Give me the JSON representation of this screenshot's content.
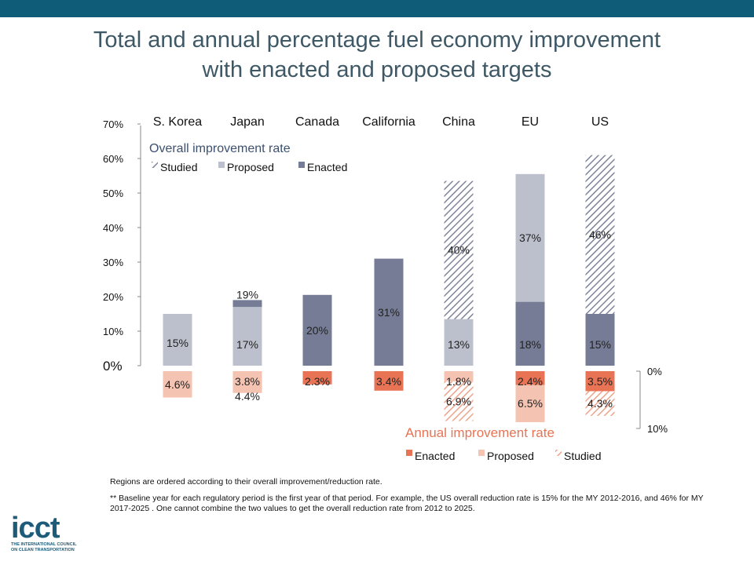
{
  "title_line1": "Total and annual percentage fuel economy improvement",
  "title_line2": "with enacted and proposed targets",
  "footnote_1": "Regions are ordered according to their overall improvement/reduction rate.",
  "footnote_2": "** Baseline year for each regulatory period is the first year of that period. For example, the US overall  reduction rate is 15% for the MY 2012-2016, and 46% for MY 2017-2025 . One cannot combine the two values to get the overall reduction rate from 2012 to 2025.",
  "logo": {
    "word": "icct",
    "sub_line1": "THE INTERNATIONAL COUNCIL",
    "sub_line2": "ON CLEAN TRANSPORTATION"
  },
  "colors": {
    "topbar": "#0e5c78",
    "studied_hatch": "#7e8499",
    "proposed": "#bcc0cc",
    "enacted": "#767c95",
    "annual_enacted": "#e87355",
    "annual_proposed": "#f5c3b2",
    "annual_studied_hatch": "#eea48c",
    "annual_title": "#e87355",
    "overall_title": "#3c5170"
  },
  "chart_data": {
    "type": "bar",
    "categories": [
      "S. Korea",
      "Japan",
      "Canada",
      "California",
      "China",
      "EU",
      "US"
    ],
    "overall": {
      "title": "Overall improvement rate",
      "legend": [
        "Studied",
        "Proposed",
        "Enacted"
      ],
      "axis_ticks": [
        "0%",
        "10%",
        "20%",
        "30%",
        "40%",
        "50%",
        "60%",
        "70%"
      ],
      "ylim": [
        0,
        70
      ],
      "bars": [
        {
          "category": "S. Korea",
          "segments": [
            {
              "kind": "Proposed",
              "value": 15,
              "label": "15%"
            }
          ]
        },
        {
          "category": "Japan",
          "segments": [
            {
              "kind": "Proposed",
              "value": 17,
              "label": "17%"
            },
            {
              "kind": "Enacted",
              "value": 2,
              "label": "19%"
            }
          ]
        },
        {
          "category": "Canada",
          "segments": [
            {
              "kind": "Enacted",
              "value": 20.5,
              "label": "20%"
            }
          ]
        },
        {
          "category": "California",
          "segments": [
            {
              "kind": "Enacted",
              "value": 31,
              "label": "31%"
            }
          ]
        },
        {
          "category": "China",
          "segments": [
            {
              "kind": "Proposed",
              "value": 13.5,
              "label": "13%"
            },
            {
              "kind": "Studied",
              "value": 40,
              "label": "40%"
            }
          ]
        },
        {
          "category": "EU",
          "segments": [
            {
              "kind": "Enacted",
              "value": 18.5,
              "label": "18%"
            },
            {
              "kind": "Proposed",
              "value": 37,
              "label": "37%"
            }
          ]
        },
        {
          "category": "US",
          "segments": [
            {
              "kind": "Enacted",
              "value": 15,
              "label": "15%"
            },
            {
              "kind": "Studied",
              "value": 46,
              "label": "46%"
            }
          ]
        }
      ]
    },
    "annual": {
      "title": "Annual improvement rate",
      "legend": [
        "Enacted",
        "Proposed",
        "Studied"
      ],
      "axis_ticks": [
        "0%",
        "10%"
      ],
      "ylim": [
        0,
        10
      ],
      "bars": [
        {
          "category": "S. Korea",
          "segments": [
            {
              "kind": "Proposed",
              "value": 4.6,
              "label": "4.6%"
            }
          ]
        },
        {
          "category": "Japan",
          "segments": [
            {
              "kind": "Proposed",
              "value": 3.8,
              "label": "3.8%"
            }
          ],
          "extra_label": "4.4%"
        },
        {
          "category": "Canada",
          "segments": [
            {
              "kind": "Enacted",
              "value": 2.3,
              "label": "2.3%"
            }
          ]
        },
        {
          "category": "California",
          "segments": [
            {
              "kind": "Enacted",
              "value": 3.4,
              "label": "3.4%"
            }
          ]
        },
        {
          "category": "China",
          "segments": [
            {
              "kind": "Proposed",
              "value": 1.8,
              "label": "1.8%"
            },
            {
              "kind": "Studied",
              "value": 6.9,
              "label": "6.9%"
            }
          ]
        },
        {
          "category": "EU",
          "segments": [
            {
              "kind": "Enacted",
              "value": 2.4,
              "label": "2.4%"
            },
            {
              "kind": "Proposed",
              "value": 6.5,
              "label": "6.5%"
            }
          ]
        },
        {
          "category": "US",
          "segments": [
            {
              "kind": "Enacted",
              "value": 3.5,
              "label": "3.5%"
            },
            {
              "kind": "Studied",
              "value": 4.3,
              "label": "4.3%"
            }
          ]
        }
      ]
    }
  }
}
